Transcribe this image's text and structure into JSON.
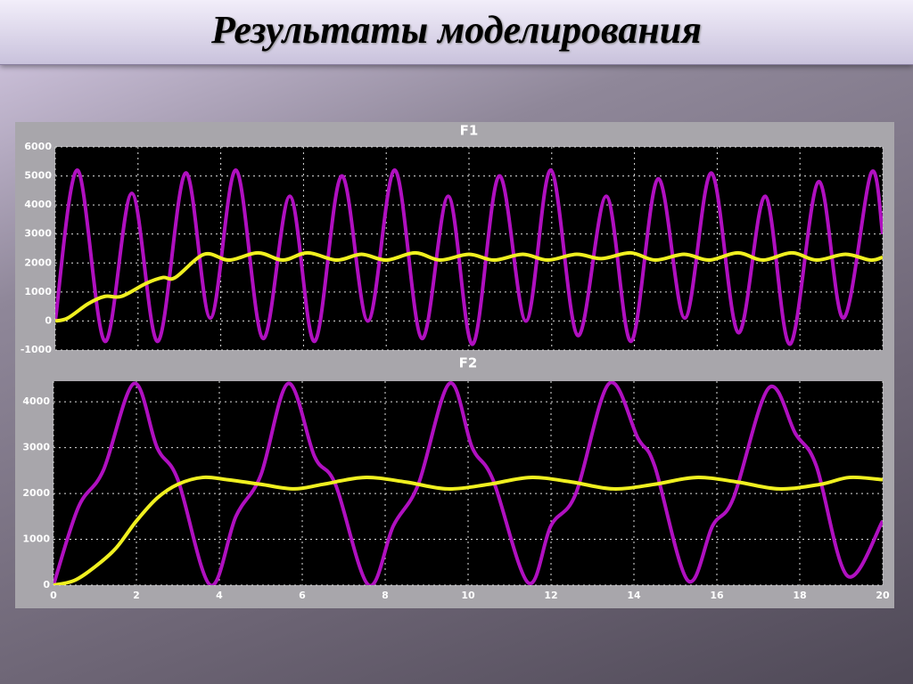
{
  "slide": {
    "title": "Результаты моделирования"
  },
  "chart_data": [
    {
      "type": "line",
      "title": "F1",
      "xlim": [
        0,
        20
      ],
      "ylim": [
        -1000,
        6000
      ],
      "yticks": [
        {
          "value": -1000,
          "label": "-1000"
        },
        0,
        1000,
        2000,
        3000,
        4000,
        5000,
        6000
      ],
      "grid": true,
      "series": [
        {
          "color": "#b010c0",
          "x": [
            0,
            0.54,
            1.2,
            1.85,
            2.48,
            3.15,
            3.75,
            4.37,
            5.02,
            5.67,
            6.27,
            6.92,
            7.56,
            8.21,
            8.86,
            9.5,
            10.09,
            10.73,
            11.38,
            11.98,
            12.63,
            13.32,
            13.92,
            14.57,
            15.22,
            15.86,
            16.51,
            17.16,
            17.76,
            18.45,
            19.05,
            19.72,
            20
          ],
          "values": [
            0,
            5200,
            -700,
            4400,
            -700,
            5100,
            100,
            5200,
            -600,
            4300,
            -700,
            5000,
            0,
            5200,
            -600,
            4300,
            -800,
            5000,
            0,
            5200,
            -500,
            4300,
            -700,
            4900,
            100,
            5100,
            -400,
            4300,
            -800,
            4800,
            100,
            5100,
            3000
          ]
        },
        {
          "color": "#f0f020",
          "x": [
            0,
            0.3,
            0.8,
            1.2,
            1.6,
            2.2,
            2.6,
            2.9,
            3.6,
            4.2,
            4.9,
            5.5,
            6.1,
            6.8,
            7.4,
            8.0,
            8.7,
            9.3,
            10.0,
            10.6,
            11.3,
            11.9,
            12.6,
            13.2,
            13.9,
            14.5,
            15.2,
            15.8,
            16.5,
            17.1,
            17.8,
            18.4,
            19.1,
            19.7,
            20
          ],
          "values": [
            0,
            100,
            600,
            850,
            850,
            1300,
            1500,
            1500,
            2300,
            2100,
            2350,
            2100,
            2350,
            2100,
            2300,
            2100,
            2350,
            2100,
            2300,
            2100,
            2300,
            2100,
            2300,
            2150,
            2350,
            2100,
            2300,
            2100,
            2350,
            2100,
            2350,
            2100,
            2300,
            2100,
            2200
          ]
        }
      ]
    },
    {
      "type": "line",
      "title": "F2",
      "xlim": [
        0,
        20
      ],
      "ylim": [
        0,
        4450
      ],
      "xticks": [
        0,
        2,
        4,
        6,
        8,
        10,
        12,
        14,
        16,
        18,
        20
      ],
      "yticks": [
        0,
        1000,
        2000,
        3000,
        4000
      ],
      "grid": true,
      "series": [
        {
          "color": "#b010c0",
          "x": [
            0,
            0.6,
            1.2,
            1.94,
            2.5,
            3.0,
            3.78,
            4.4,
            5.0,
            5.66,
            6.3,
            6.8,
            7.6,
            8.2,
            8.8,
            9.55,
            10.1,
            10.6,
            11.45,
            12.0,
            12.6,
            13.4,
            14.1,
            14.5,
            15.3,
            15.9,
            16.4,
            17.25,
            17.9,
            18.4,
            19.15,
            20
          ],
          "values": [
            0,
            1700,
            2500,
            4400,
            3000,
            2300,
            0,
            1500,
            2400,
            4400,
            2800,
            2200,
            0,
            1300,
            2200,
            4400,
            3000,
            2300,
            50,
            1300,
            2000,
            4400,
            3200,
            2600,
            100,
            1300,
            1900,
            4300,
            3300,
            2600,
            200,
            1400
          ]
        },
        {
          "color": "#f0f020",
          "x": [
            0,
            0.5,
            1,
            1.5,
            2,
            2.5,
            3,
            3.6,
            4.2,
            5,
            5.8,
            6.5,
            7.5,
            8.5,
            9.5,
            10.5,
            11.5,
            12.5,
            13.5,
            14.5,
            15.5,
            16.5,
            17.5,
            18.5,
            19.2,
            20
          ],
          "values": [
            0,
            100,
            400,
            800,
            1400,
            1900,
            2200,
            2350,
            2300,
            2200,
            2100,
            2200,
            2350,
            2250,
            2100,
            2200,
            2350,
            2250,
            2100,
            2200,
            2350,
            2250,
            2100,
            2200,
            2350,
            2300
          ]
        }
      ]
    }
  ]
}
